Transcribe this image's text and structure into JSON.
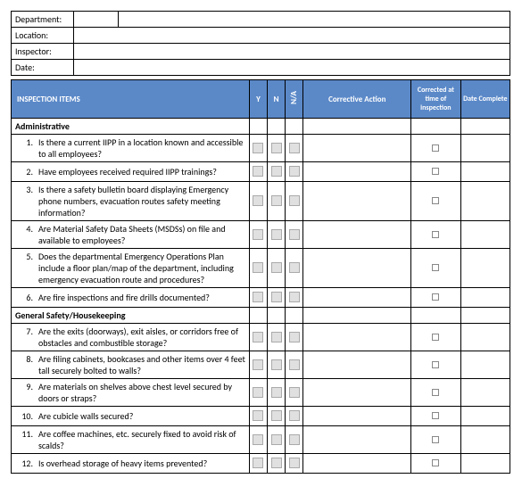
{
  "meta": {
    "department_label": "Department:",
    "location_label": "Location:",
    "inspector_label": "Inspector:",
    "date_label": "Date:"
  },
  "headers": {
    "items": "INSPECTION ITEMS",
    "y": "Y",
    "n": "N",
    "na": "N/A",
    "action": "Corrective Action",
    "corrected": "Corrected at time of inspection",
    "date_complete": "Date Complete"
  },
  "header_bg": "#5b89c8",
  "sections": [
    {
      "title": "Administrative",
      "items": [
        {
          "num": "1.",
          "text": "Is there a current IIPP in a location known and accessible to all employees?"
        },
        {
          "num": "2.",
          "text": "Have employees received required IIPP trainings?"
        },
        {
          "num": "3.",
          "text": "Is there a safety bulletin board displaying Emergency phone numbers, evacuation routes safety meeting information?"
        },
        {
          "num": "4.",
          "text": "Are Material Safety Data Sheets (MSDSs) on file and available to employees?"
        },
        {
          "num": "5.",
          "text": "Does the departmental Emergency Operations Plan include a floor plan/map of the department, including emergency evacuation route and procedures?"
        },
        {
          "num": "6.",
          "text": "Are fire inspections and fire drills documented?"
        }
      ]
    },
    {
      "title": "General Safety/Housekeeping",
      "items": [
        {
          "num": "7.",
          "text": "Are the exits (doorways), exit aisles, or corridors free of obstacles and combustible storage?"
        },
        {
          "num": "8.",
          "text": "Are filing cabinets, bookcases and other items over 4 feet tall securely bolted to walls?"
        },
        {
          "num": "9.",
          "text": "Are materials on shelves above chest level secured by doors or straps?"
        },
        {
          "num": "10.",
          "text": "Are cubicle walls secured?"
        },
        {
          "num": "11.",
          "text": "Are coffee machines, etc. securely fixed to avoid risk of scalds?"
        },
        {
          "num": "12.",
          "text": "Is overhead storage of heavy items prevented?"
        }
      ]
    }
  ]
}
